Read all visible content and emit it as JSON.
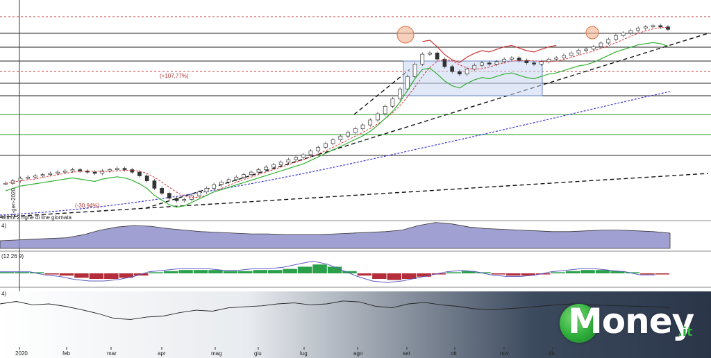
{
  "chart_data": [
    {
      "type": "candlestick",
      "title": "",
      "pane": "price",
      "x_axis_ticks": [
        "2020",
        "feb",
        "mar",
        "apr",
        "mag",
        "giu",
        "lug",
        "ago",
        "set",
        "ott",
        "nov",
        "dic"
      ],
      "annotations": [
        "(+107,77%)",
        "(-30,94%)",
        "2-gen-2020",
        "Ultimi 2 righe di line giornata"
      ],
      "series": [
        {
          "name": "",
          "kind": "close",
          "values": [
            100,
            102,
            104,
            105,
            106,
            107,
            108,
            109,
            110,
            111,
            110,
            109,
            108,
            110,
            111,
            112,
            111,
            109,
            106,
            102,
            96,
            92,
            88,
            86,
            87,
            90,
            93,
            96,
            99,
            101,
            103,
            105,
            107,
            109,
            111,
            113,
            115,
            117,
            119,
            121,
            123,
            126,
            129,
            132,
            135,
            138,
            141,
            144,
            147,
            151,
            156,
            162,
            168,
            176,
            186,
            196,
            204,
            205,
            200,
            194,
            190,
            188,
            192,
            195,
            197,
            196,
            198,
            200,
            201,
            199,
            197,
            196,
            198,
            200,
            201,
            203,
            205,
            207,
            208,
            210,
            213,
            216,
            219,
            221,
            223,
            225,
            226,
            227,
            226,
            224
          ]
        }
      ]
    },
    {
      "type": "area",
      "title": "",
      "pane": "volume",
      "label": "4)",
      "values": [
        10,
        11,
        12,
        13,
        14,
        18,
        24,
        28,
        30,
        29,
        26,
        24,
        22,
        21,
        20,
        19,
        19,
        18,
        18,
        18,
        19,
        20,
        21,
        22,
        24,
        30,
        34,
        32,
        28,
        26,
        25,
        24,
        23,
        22,
        22,
        23,
        24,
        24,
        23,
        22,
        20
      ]
    },
    {
      "type": "histogram",
      "title": "",
      "pane": "macd",
      "label": "(12 26 9)",
      "values": [
        1,
        1,
        1,
        -1,
        -2,
        -4,
        -5,
        -5,
        -4,
        -2,
        1,
        2,
        3,
        3,
        3,
        2,
        2,
        3,
        3,
        4,
        6,
        8,
        6,
        2,
        -2,
        -5,
        -6,
        -5,
        -3,
        -1,
        1,
        2,
        1,
        -1,
        -2,
        -2,
        -1,
        1,
        2,
        3,
        3,
        2,
        1,
        -1,
        -1
      ]
    },
    {
      "type": "line",
      "title": "",
      "pane": "rsi",
      "label": "4)",
      "values": [
        60,
        65,
        58,
        60,
        55,
        48,
        40,
        30,
        28,
        33,
        35,
        42,
        47,
        45,
        52,
        54,
        56,
        60,
        62,
        58,
        60,
        66,
        64,
        55,
        52,
        60,
        63,
        58,
        55,
        50,
        48,
        50,
        52,
        55,
        58,
        60,
        58,
        57,
        56,
        55,
        54,
        53
      ]
    }
  ],
  "price_levels": {
    "red_dotted_top": "resistance",
    "green_lines": 2,
    "black_lines": 7
  },
  "brand": {
    "logo_text": "Money",
    "logo_suffix": ".it",
    "accent": "#2eae3a"
  },
  "colors": {
    "up_candle": "#2a7d2a",
    "down_candle": "#b83232",
    "sma_fast": "#d33",
    "trail_green": "#30b030",
    "trail_red": "#cc3333",
    "sma_slow": "#3a3acc",
    "volume_fill": "#8a88c7",
    "box_fill": "#c8d6f0"
  }
}
